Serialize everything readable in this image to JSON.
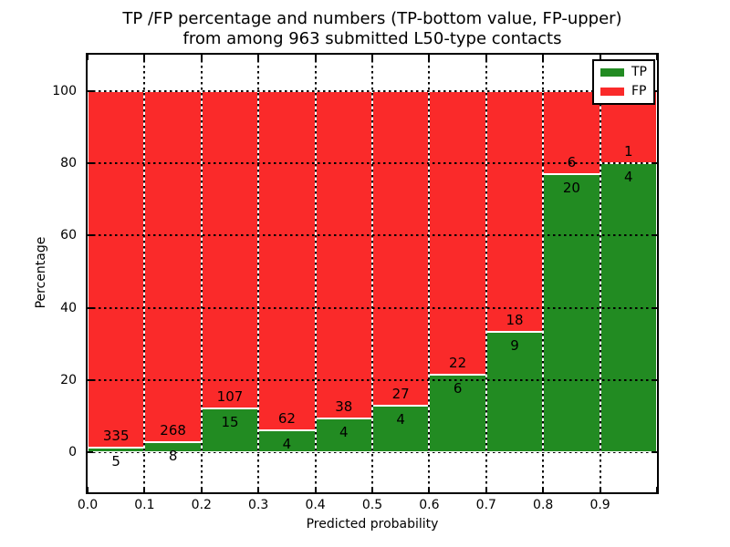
{
  "figure": {
    "title_line1": "TP /FP percentage and numbers (TP-bottom value, FP-upper)",
    "title_line2": "from among 963 submitted L50-type contacts",
    "background": "#ffffff"
  },
  "axes": {
    "xlabel": "Predicted probability",
    "ylabel": "Percentage",
    "x_tick_labels": [
      "0.0",
      "0.1",
      "0.2",
      "0.3",
      "0.4",
      "0.5",
      "0.6",
      "0.7",
      "0.8",
      "0.9"
    ],
    "y_tick_labels": [
      "0",
      "20",
      "40",
      "60",
      "80",
      "100"
    ],
    "y_tick_values": [
      0,
      20,
      40,
      60,
      80,
      100
    ],
    "xlim": [
      0.0,
      1.0
    ],
    "ylim": [
      -11,
      110
    ],
    "grid_style": "dotted",
    "spine_color": "#000000"
  },
  "legend": {
    "position": "upper right",
    "items": [
      {
        "label": "TP",
        "color": "#228b22"
      },
      {
        "label": "FP",
        "color": "#fa2a2a"
      }
    ]
  },
  "colors": {
    "tp_green": "#228b22",
    "fp_red": "#fa2a2a",
    "bar_edge": "#ffffff",
    "grid": "#000000",
    "text": "#000000"
  },
  "chart_data": {
    "type": "bar",
    "stacked": true,
    "normalized": "each bar totals 100%",
    "title": "TP /FP percentage and numbers (TP-bottom value, FP-upper) from among 963 submitted L50-type contacts",
    "xlabel": "Predicted probability",
    "ylabel": "Percentage",
    "total_contacts": 963,
    "bins": [
      "0.0-0.1",
      "0.1-0.2",
      "0.2-0.3",
      "0.3-0.4",
      "0.4-0.5",
      "0.5-0.6",
      "0.6-0.7",
      "0.7-0.8",
      "0.8-0.9",
      "0.9-1.0"
    ],
    "bin_starts": [
      0.0,
      0.1,
      0.2,
      0.3,
      0.4,
      0.5,
      0.6,
      0.7,
      0.8,
      0.9
    ],
    "bin_width": 0.1,
    "series": [
      {
        "name": "TP",
        "color": "#228b22",
        "counts": [
          5,
          8,
          15,
          4,
          4,
          4,
          6,
          9,
          20,
          4
        ],
        "percent": [
          1.47,
          2.9,
          12.3,
          6.06,
          9.52,
          12.9,
          21.43,
          33.33,
          76.92,
          80.0
        ]
      },
      {
        "name": "FP",
        "color": "#fa2a2a",
        "counts": [
          335,
          268,
          107,
          62,
          38,
          27,
          22,
          18,
          6,
          1
        ],
        "percent": [
          98.53,
          97.1,
          87.7,
          93.94,
          90.48,
          87.1,
          78.57,
          66.67,
          23.08,
          20.0
        ]
      }
    ],
    "annotation_note": "FP count printed above green segment top, TP count below it",
    "xlim": [
      0.0,
      1.0
    ],
    "ylim": [
      -11,
      110
    ],
    "legend_position": "upper right",
    "grid": "dotted black; vertical every 0.1, horizontal every 20%"
  }
}
